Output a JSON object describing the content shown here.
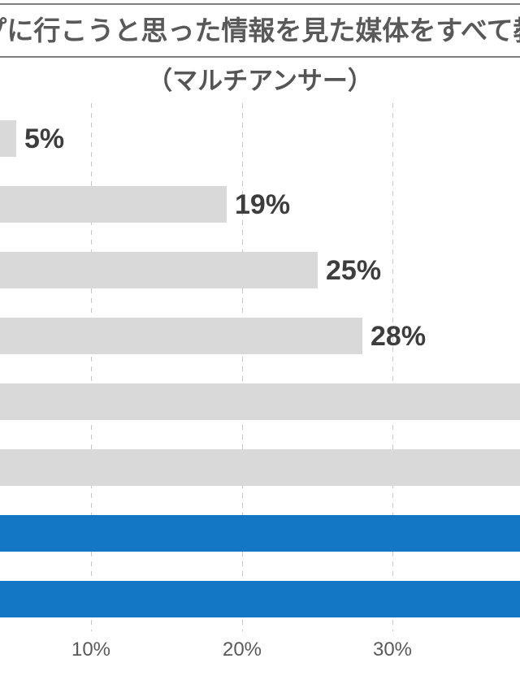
{
  "title": "プに行こうと思った情報を見た媒体をすべて教",
  "subtitle": "（マルチアンサー）",
  "colors": {
    "bar_gray": "#d9d9d9",
    "bar_blue": "#1477c5",
    "value_label_text": "#3d3d3d",
    "axis_text": "#595959",
    "title_text": "#595959",
    "grid_line": "#c9c9c9",
    "title_border": "#7f7f7f"
  },
  "chart_data": {
    "type": "bar",
    "orientation": "horizontal",
    "title": "プに行こうと思った情報を見た媒体をすべて教",
    "subtitle": "（マルチアンサー）",
    "xlabel": "",
    "ylabel": "",
    "x_axis": {
      "unit": "%",
      "tick_values": [
        10,
        20,
        30
      ],
      "tick_labels": [
        "10%",
        "20%",
        "30%"
      ],
      "grid": "dashed-vertical",
      "origin_cropped_offscreen_left": true
    },
    "bars": [
      {
        "value": 5,
        "label": "5%",
        "color_key": "gray",
        "cut_off_right": false
      },
      {
        "value": 19,
        "label": "19%",
        "color_key": "gray",
        "cut_off_right": false
      },
      {
        "value": 25,
        "label": "25%",
        "color_key": "gray",
        "cut_off_right": false
      },
      {
        "value": 28,
        "label": "28%",
        "color_key": "gray",
        "cut_off_right": false
      },
      {
        "value": null,
        "label": "",
        "color_key": "gray",
        "cut_off_right": true
      },
      {
        "value": null,
        "label": "",
        "color_key": "gray",
        "cut_off_right": true
      },
      {
        "value": null,
        "label": "",
        "color_key": "blue",
        "cut_off_right": true
      },
      {
        "value": null,
        "label": "",
        "color_key": "blue",
        "cut_off_right": true
      }
    ]
  }
}
